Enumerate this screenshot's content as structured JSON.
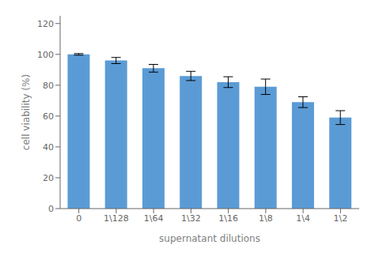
{
  "chart_data": {
    "type": "bar",
    "categories": [
      "0",
      "1\\128",
      "1\\64",
      "1\\32",
      "1\\16",
      "1\\8",
      "1\\4",
      "1\\2"
    ],
    "values": [
      100,
      96,
      91,
      86,
      82,
      79,
      69,
      59
    ],
    "errors": [
      0.5,
      2.0,
      2.5,
      3.0,
      3.5,
      5.0,
      3.5,
      4.5
    ],
    "color": "#5b9bd5",
    "xlabel": "supernatant dilutions",
    "ylabel": "cell viability (%)",
    "ylim": [
      0,
      125
    ],
    "yticks": [
      0,
      20,
      40,
      60,
      80,
      100,
      120
    ],
    "grid": false
  }
}
